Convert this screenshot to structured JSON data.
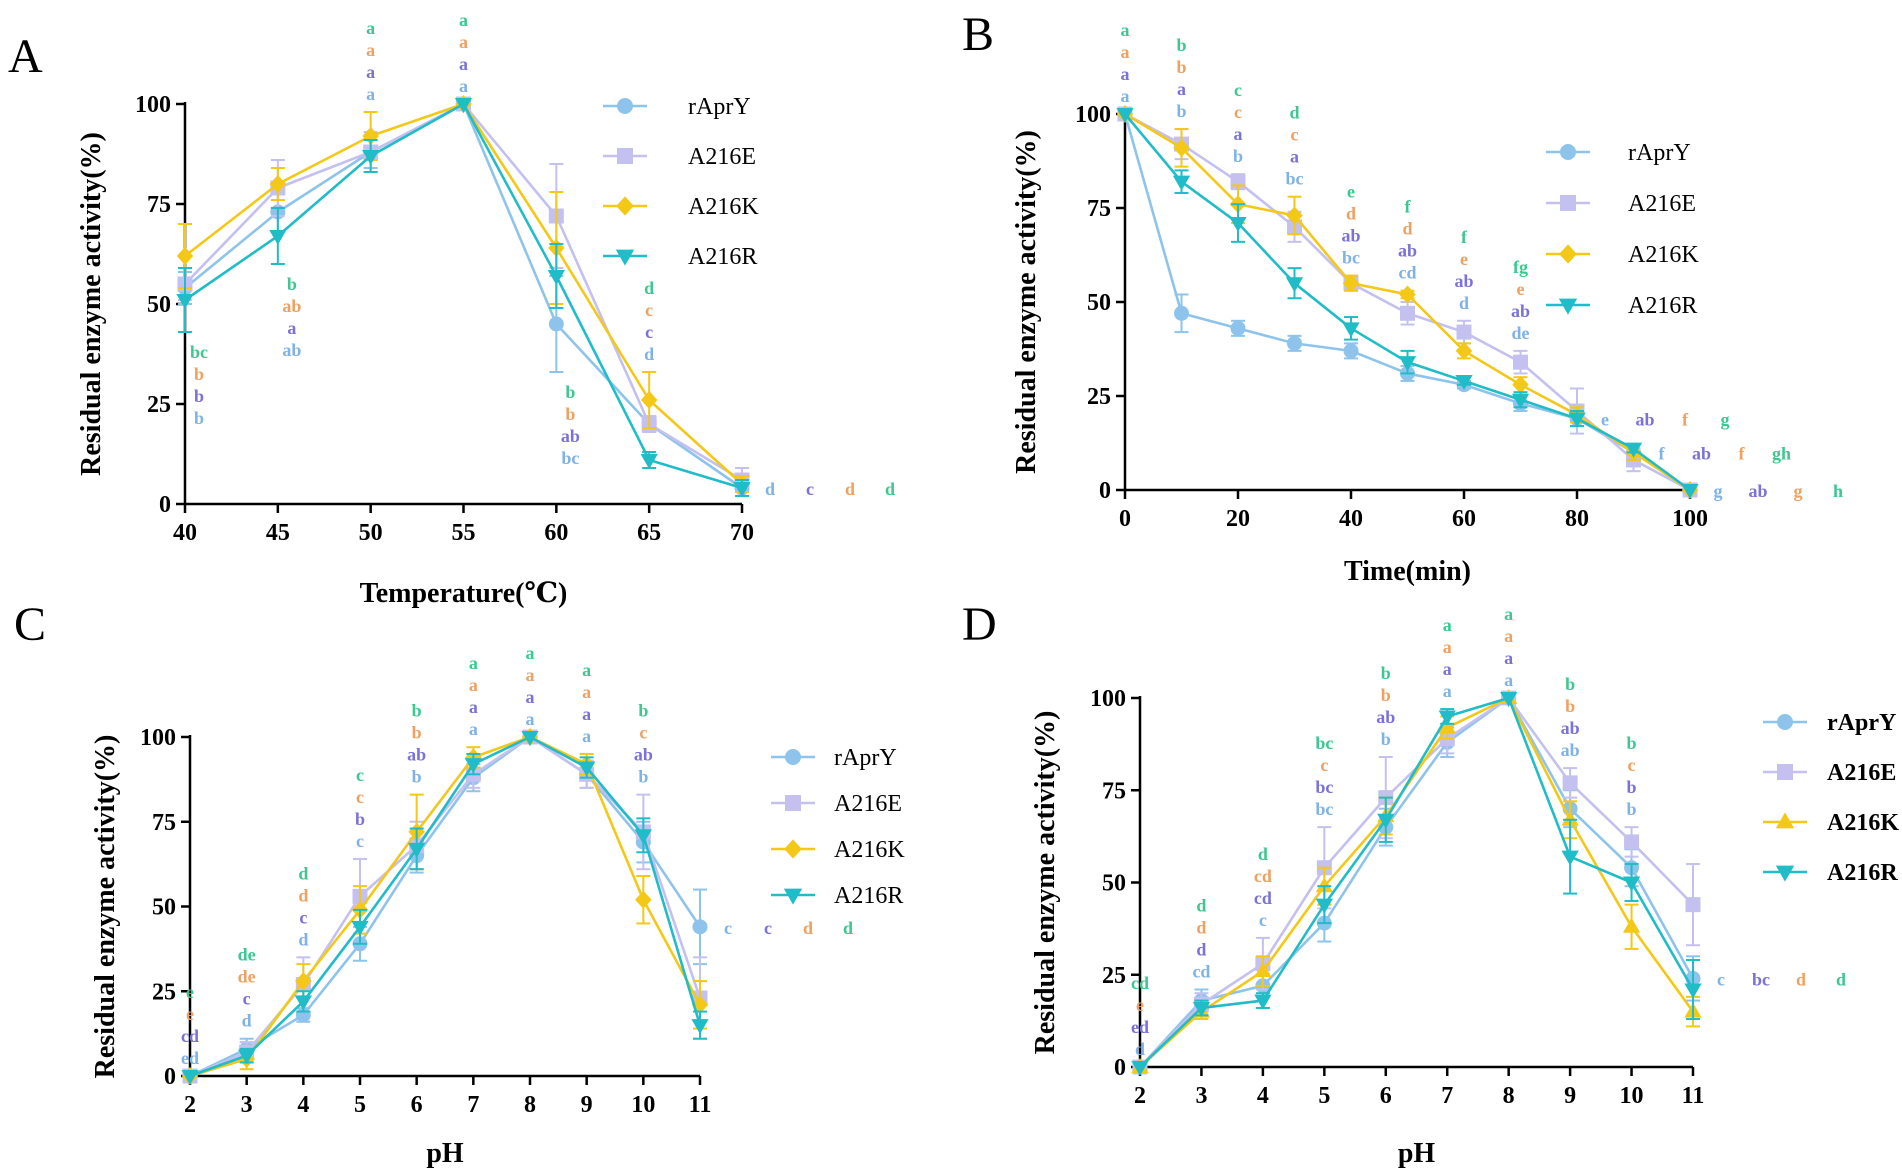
{
  "colors": {
    "rAprY": "#8ec4ec",
    "A216E": "#c4c0f0",
    "A216K": "#f4c817",
    "A216R": "#20bcc8",
    "sig_rAprY": "#7fb2e6",
    "sig_A216E": "#7a72d8",
    "sig_A216K": "#f0a060",
    "sig_A216R": "#3cc890"
  },
  "chart_data": [
    {
      "panel": "A",
      "type": "line",
      "xlabel": "Temperature(℃)",
      "ylabel": "Residual enzyme activity(%)",
      "x": [
        40,
        45,
        50,
        55,
        60,
        65,
        70
      ],
      "xticks": [
        "40",
        "45",
        "50",
        "55",
        "60",
        "65",
        "70"
      ],
      "xlim": [
        40,
        70
      ],
      "ylim": [
        0,
        100
      ],
      "yticks": [
        "0",
        "25",
        "50",
        "75",
        "100"
      ],
      "legend_bold": false,
      "series": [
        {
          "name": "rAprY",
          "marker": "circle",
          "values": [
            54,
            73,
            88,
            100,
            45,
            20,
            4
          ],
          "errors": [
            4,
            5,
            4,
            0,
            12,
            2,
            2
          ]
        },
        {
          "name": "A216E",
          "marker": "square",
          "values": [
            55,
            79,
            88,
            100,
            72,
            20,
            6
          ],
          "errors": [
            4,
            7,
            5,
            0,
            13,
            2,
            3
          ]
        },
        {
          "name": "A216K",
          "marker": "diamond",
          "values": [
            62,
            80,
            92,
            100,
            64,
            26,
            5
          ],
          "errors": [
            8,
            4,
            6,
            0,
            14,
            7,
            2
          ]
        },
        {
          "name": "A216R",
          "marker": "triangle-down",
          "values": [
            51,
            67,
            87,
            100,
            57,
            11,
            4
          ],
          "errors": [
            8,
            7,
            4,
            0,
            8,
            2,
            2
          ]
        }
      ],
      "significance": [
        {
          "x": 40,
          "side": "below",
          "letters": [
            "b",
            "b",
            "b",
            "bc"
          ]
        },
        {
          "x": 45,
          "side": "below",
          "letters": [
            "ab",
            "a",
            "ab",
            "b"
          ]
        },
        {
          "x": 50,
          "side": "above",
          "letters": [
            "a",
            "a",
            "a",
            "a"
          ]
        },
        {
          "x": 55,
          "side": "above",
          "letters": [
            "a",
            "a",
            "a",
            "a"
          ]
        },
        {
          "x": 60,
          "side": "below",
          "letters": [
            "bc",
            "ab",
            "b",
            "b"
          ]
        },
        {
          "x": 65,
          "side": "above",
          "letters": [
            "d",
            "c",
            "c",
            "d"
          ]
        },
        {
          "x": 70,
          "side": "right",
          "letters": [
            "d",
            "c",
            "d",
            "d"
          ]
        }
      ]
    },
    {
      "panel": "B",
      "type": "line",
      "xlabel": "Time(min)",
      "ylabel": "Residual enzyme activity(%)",
      "x": [
        0,
        10,
        20,
        30,
        40,
        50,
        60,
        70,
        80,
        90,
        100
      ],
      "xticks": [
        "0",
        "20",
        "40",
        "60",
        "80",
        "100"
      ],
      "xtick_values": [
        0,
        20,
        40,
        60,
        80,
        100
      ],
      "xlim": [
        0,
        100
      ],
      "ylim": [
        0,
        100
      ],
      "yticks": [
        "0",
        "25",
        "50",
        "75",
        "100"
      ],
      "legend_bold": false,
      "series": [
        {
          "name": "rAprY",
          "marker": "circle",
          "values": [
            100,
            47,
            43,
            39,
            37,
            31,
            28,
            23,
            19,
            10,
            0
          ],
          "errors": [
            0,
            5,
            2,
            2,
            2,
            2,
            1,
            2,
            2,
            1,
            0
          ]
        },
        {
          "name": "A216E",
          "marker": "square",
          "values": [
            100,
            92,
            82,
            70,
            55,
            47,
            42,
            34,
            21,
            8,
            0
          ],
          "errors": [
            0,
            4,
            2,
            4,
            2,
            3,
            3,
            3,
            6,
            3,
            0
          ]
        },
        {
          "name": "A216K",
          "marker": "diamond",
          "values": [
            100,
            91,
            76,
            73,
            55,
            52,
            37,
            28,
            20,
            10,
            0
          ],
          "errors": [
            0,
            5,
            5,
            5,
            2,
            1,
            2,
            2,
            2,
            2,
            0
          ]
        },
        {
          "name": "A216R",
          "marker": "triangle-down",
          "values": [
            100,
            82,
            71,
            55,
            43,
            34,
            29,
            24,
            19,
            11,
            0
          ],
          "errors": [
            0,
            3,
            5,
            4,
            3,
            3,
            1,
            2,
            2,
            1,
            0
          ]
        }
      ],
      "significance": [
        {
          "x": 0,
          "side": "above",
          "letters": [
            "a",
            "a",
            "a",
            "a"
          ]
        },
        {
          "x": 10,
          "side": "above",
          "letters": [
            "b",
            "a",
            "b",
            "b"
          ]
        },
        {
          "x": 20,
          "side": "above",
          "letters": [
            "b",
            "a",
            "c",
            "c"
          ]
        },
        {
          "x": 30,
          "side": "above",
          "letters": [
            "bc",
            "a",
            "c",
            "d"
          ]
        },
        {
          "x": 40,
          "side": "above",
          "letters": [
            "bc",
            "ab",
            "d",
            "e"
          ]
        },
        {
          "x": 50,
          "side": "above",
          "letters": [
            "cd",
            "ab",
            "d",
            "f"
          ]
        },
        {
          "x": 60,
          "side": "above",
          "letters": [
            "d",
            "ab",
            "e",
            "f"
          ]
        },
        {
          "x": 70,
          "side": "above",
          "letters": [
            "de",
            "ab",
            "e",
            "fg"
          ]
        },
        {
          "x": 80,
          "side": "right",
          "letters": [
            "e",
            "ab",
            "f",
            "g"
          ]
        },
        {
          "x": 90,
          "side": "right",
          "letters": [
            "f",
            "ab",
            "f",
            "gh"
          ]
        },
        {
          "x": 100,
          "side": "right",
          "letters": [
            "g",
            "ab",
            "g",
            "h"
          ]
        }
      ]
    },
    {
      "panel": "C",
      "type": "line",
      "xlabel": "pH",
      "ylabel": "Residual enzyme activity(%)",
      "x": [
        2,
        3,
        4,
        5,
        6,
        7,
        8,
        9,
        10,
        11
      ],
      "xticks": [
        "2",
        "3",
        "4",
        "5",
        "6",
        "7",
        "8",
        "9",
        "10",
        "11"
      ],
      "xlim": [
        2,
        11
      ],
      "ylim": [
        0,
        100
      ],
      "yticks": [
        "0",
        "25",
        "50",
        "75",
        "100"
      ],
      "legend_bold": false,
      "series": [
        {
          "name": "rAprY",
          "marker": "circle",
          "values": [
            0,
            8,
            18,
            39,
            65,
            88,
            100,
            89,
            69,
            44
          ],
          "errors": [
            0,
            3,
            2,
            5,
            5,
            4,
            0,
            4,
            6,
            11
          ]
        },
        {
          "name": "A216E",
          "marker": "square",
          "values": [
            0,
            7,
            27,
            53,
            68,
            89,
            100,
            89,
            72,
            23
          ],
          "errors": [
            0,
            3,
            8,
            11,
            7,
            4,
            0,
            4,
            11,
            12
          ]
        },
        {
          "name": "A216K",
          "marker": "diamond",
          "values": [
            0,
            5,
            28,
            49,
            72,
            94,
            100,
            92,
            52,
            21
          ],
          "errors": [
            0,
            3,
            5,
            7,
            11,
            3,
            0,
            3,
            7,
            7
          ]
        },
        {
          "name": "A216R",
          "marker": "triangle-down",
          "values": [
            0,
            6,
            22,
            44,
            67,
            92,
            100,
            91,
            71,
            15
          ],
          "errors": [
            0,
            2,
            3,
            5,
            6,
            3,
            0,
            3,
            5,
            4
          ]
        }
      ],
      "significance": [
        {
          "x": 2,
          "side": "above",
          "letters": [
            "ed",
            "cd",
            "e",
            "e"
          ]
        },
        {
          "x": 3,
          "side": "above",
          "letters": [
            "d",
            "c",
            "de",
            "de"
          ]
        },
        {
          "x": 4,
          "side": "above",
          "letters": [
            "d",
            "c",
            "d",
            "d"
          ]
        },
        {
          "x": 5,
          "side": "above",
          "letters": [
            "c",
            "b",
            "c",
            "c"
          ]
        },
        {
          "x": 6,
          "side": "above",
          "letters": [
            "b",
            "ab",
            "b",
            "b"
          ]
        },
        {
          "x": 7,
          "side": "above",
          "letters": [
            "a",
            "a",
            "a",
            "a"
          ]
        },
        {
          "x": 8,
          "side": "above",
          "letters": [
            "a",
            "a",
            "a",
            "a"
          ]
        },
        {
          "x": 9,
          "side": "above",
          "letters": [
            "a",
            "a",
            "a",
            "a"
          ]
        },
        {
          "x": 10,
          "side": "above",
          "letters": [
            "b",
            "ab",
            "c",
            "b"
          ]
        },
        {
          "x": 11,
          "side": "right",
          "letters": [
            "c",
            "c",
            "d",
            "d"
          ]
        }
      ]
    },
    {
      "panel": "D",
      "type": "line",
      "xlabel": "pH",
      "ylabel": "Residual enzyme activity(%)",
      "x": [
        2,
        3,
        4,
        5,
        6,
        7,
        8,
        9,
        10,
        11
      ],
      "xticks": [
        "2",
        "3",
        "4",
        "5",
        "6",
        "7",
        "8",
        "9",
        "10",
        "11"
      ],
      "xlim": [
        2,
        11
      ],
      "ylim": [
        0,
        100
      ],
      "yticks": [
        "0",
        "25",
        "50",
        "75",
        "100"
      ],
      "legend_bold": true,
      "series": [
        {
          "name": "rAprY",
          "marker": "circle",
          "values": [
            0,
            18,
            22,
            39,
            65,
            88,
            100,
            70,
            54,
            24
          ],
          "errors": [
            0,
            3,
            3,
            5,
            5,
            4,
            0,
            5,
            5,
            6
          ]
        },
        {
          "name": "A216E",
          "marker": "square",
          "values": [
            0,
            17,
            28,
            54,
            73,
            89,
            100,
            77,
            61,
            44
          ],
          "errors": [
            0,
            3,
            7,
            11,
            11,
            4,
            0,
            4,
            4,
            11
          ]
        },
        {
          "name": "A216K",
          "marker": "triangle",
          "values": [
            0,
            15,
            26,
            49,
            68,
            92,
            100,
            67,
            38,
            15
          ],
          "errors": [
            0,
            2,
            4,
            5,
            5,
            3,
            0,
            5,
            6,
            4
          ]
        },
        {
          "name": "A216R",
          "marker": "triangle-down",
          "values": [
            0,
            16,
            18,
            44,
            67,
            95,
            100,
            57,
            50,
            21
          ],
          "errors": [
            0,
            2,
            2,
            5,
            6,
            2,
            0,
            10,
            5,
            8
          ]
        }
      ],
      "significance": [
        {
          "x": 2,
          "side": "above",
          "letters": [
            "d",
            "ed",
            "e",
            "cd"
          ]
        },
        {
          "x": 3,
          "side": "above",
          "letters": [
            "cd",
            "d",
            "d",
            "d"
          ]
        },
        {
          "x": 4,
          "side": "above",
          "letters": [
            "c",
            "cd",
            "cd",
            "d"
          ]
        },
        {
          "x": 5,
          "side": "above",
          "letters": [
            "bc",
            "bc",
            "c",
            "bc"
          ]
        },
        {
          "x": 6,
          "side": "above",
          "letters": [
            "b",
            "ab",
            "b",
            "b"
          ]
        },
        {
          "x": 7,
          "side": "above",
          "letters": [
            "a",
            "a",
            "a",
            "a"
          ]
        },
        {
          "x": 8,
          "side": "above",
          "letters": [
            "a",
            "a",
            "a",
            "a"
          ]
        },
        {
          "x": 9,
          "side": "above",
          "letters": [
            "ab",
            "ab",
            "b",
            "b"
          ]
        },
        {
          "x": 10,
          "side": "above",
          "letters": [
            "b",
            "b",
            "c",
            "b"
          ]
        },
        {
          "x": 11,
          "side": "right",
          "letters": [
            "c",
            "bc",
            "d",
            "d"
          ]
        }
      ]
    }
  ]
}
